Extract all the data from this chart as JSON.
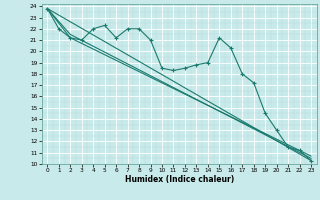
{
  "xlabel": "Humidex (Indice chaleur)",
  "bg_color": "#c8eaea",
  "line_color": "#1a7a6e",
  "grid_major_color": "#ffffff",
  "xlim": [
    -0.5,
    23.5
  ],
  "ylim": [
    10,
    24.2
  ],
  "yticks": [
    10,
    11,
    12,
    13,
    14,
    15,
    16,
    17,
    18,
    19,
    20,
    21,
    22,
    23,
    24
  ],
  "xticks": [
    0,
    1,
    2,
    3,
    4,
    5,
    6,
    7,
    8,
    9,
    10,
    11,
    12,
    13,
    14,
    15,
    16,
    17,
    18,
    19,
    20,
    21,
    22,
    23
  ],
  "series1_x": [
    0,
    1,
    2,
    3,
    4,
    5,
    6,
    7,
    8,
    9,
    10,
    11,
    12,
    13,
    14,
    15,
    16,
    17,
    18,
    19,
    20,
    21,
    22,
    23
  ],
  "series1_y": [
    23.8,
    22.0,
    21.2,
    21.0,
    22.0,
    22.3,
    21.2,
    22.0,
    22.0,
    21.0,
    18.5,
    18.3,
    18.5,
    18.8,
    19.0,
    21.2,
    20.3,
    18.0,
    17.2,
    14.5,
    13.0,
    11.5,
    11.2,
    10.3
  ],
  "trend1_x": [
    0,
    23
  ],
  "trend1_y": [
    23.8,
    10.3
  ],
  "trend2_x": [
    0,
    2,
    23
  ],
  "trend2_y": [
    23.8,
    21.5,
    10.5
  ],
  "trend3_x": [
    0,
    2,
    23
  ],
  "trend3_y": [
    23.8,
    21.2,
    10.7
  ]
}
